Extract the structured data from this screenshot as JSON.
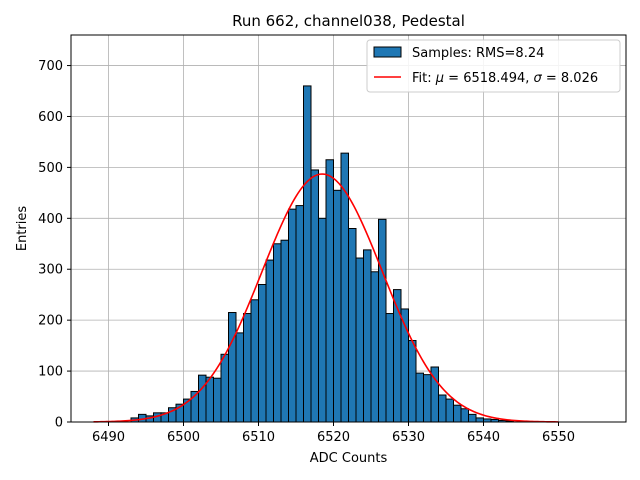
{
  "chart_data": {
    "type": "bar",
    "title": "Run 662, channel038, Pedestal",
    "xlabel": "ADC Counts",
    "ylabel": "Entries",
    "xlim": [
      6485,
      6559
    ],
    "ylim": [
      0,
      760
    ],
    "grid": true,
    "legend_position": "top-right",
    "x_ticks": [
      6490,
      6500,
      6510,
      6520,
      6530,
      6540,
      6550
    ],
    "y_ticks": [
      0,
      100,
      200,
      300,
      400,
      500,
      600,
      700
    ],
    "bar_color": "#1f77b4",
    "fit_color": "#ff0000",
    "histogram": {
      "name": "Samples: RMS=8.24",
      "bin_width": 1,
      "bin_starts": [
        6493,
        6494,
        6495,
        6496,
        6497,
        6498,
        6499,
        6500,
        6501,
        6502,
        6503,
        6504,
        6505,
        6506,
        6507,
        6508,
        6509,
        6510,
        6511,
        6512,
        6513,
        6514,
        6515,
        6516,
        6517,
        6518,
        6519,
        6520,
        6521,
        6522,
        6523,
        6524,
        6525,
        6526,
        6527,
        6528,
        6529,
        6530,
        6531,
        6532,
        6533,
        6534,
        6535,
        6536,
        6537,
        6538,
        6539,
        6540,
        6541,
        6542,
        6543
      ],
      "counts": [
        8,
        15,
        12,
        18,
        18,
        28,
        35,
        45,
        60,
        92,
        88,
        86,
        133,
        215,
        175,
        213,
        240,
        270,
        318,
        350,
        357,
        418,
        425,
        660,
        495,
        400,
        515,
        455,
        528,
        380,
        322,
        338,
        295,
        398,
        213,
        260,
        222,
        160,
        96,
        93,
        108,
        53,
        45,
        33,
        26,
        15,
        8,
        6,
        5,
        3,
        2
      ]
    },
    "fit": {
      "name": "Fit: μ = 6518.494, σ = 8.026",
      "label_prefix": "Fit: ",
      "mu_symbol": "μ",
      "mu_text": " = 6518.494, ",
      "sigma_symbol": "σ",
      "sigma_text": " = 8.026",
      "mu": 6518.494,
      "sigma": 8.026,
      "amplitude": 487,
      "x_range": [
        6488,
        6550
      ]
    }
  }
}
